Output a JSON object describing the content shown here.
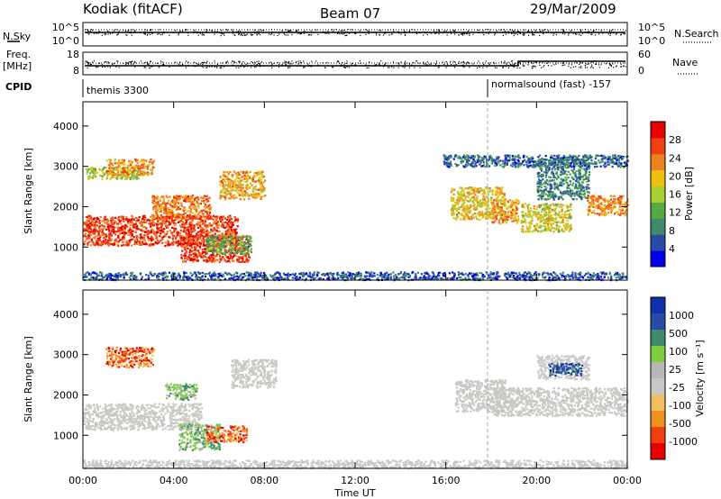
{
  "header": {
    "station": "Kodiak (fitACF)",
    "beam": "Beam 07",
    "date": "29/Mar/2009"
  },
  "noise_panel": {
    "left_label": "N.Sky",
    "right_label": "N.Search",
    "ticks_left": [
      "10^5",
      "10^0"
    ],
    "ticks_right": [
      "10^5",
      "10^0"
    ]
  },
  "freq_panel": {
    "left_label_1": "Freq.",
    "left_label_2": "[MHz]",
    "right_label": "Nave",
    "ticks_left": [
      "18",
      "8"
    ],
    "ticks_right": [
      "60",
      "0"
    ]
  },
  "cpid_panel": {
    "label": "CPID",
    "segments": [
      {
        "t_start": 0,
        "t_end": 18,
        "text": "themis 3300"
      },
      {
        "t_start": 18,
        "t_end": 24,
        "text": "normalsound (fast) -157"
      }
    ]
  },
  "colors": {
    "power": [
      "#0000ee",
      "#2a4aa8",
      "#3e8a6a",
      "#55aa44",
      "#a8d030",
      "#f0c010",
      "#f08020",
      "#f04010",
      "#e80000"
    ],
    "velocity": [
      "#e80000",
      "#f04010",
      "#f09020",
      "#f0c060",
      "#c8c8c8",
      "#b8b8b8",
      "#7fcf40",
      "#3e8a6a",
      "#2a4aa8",
      "#1030b0"
    ],
    "ground_scatter": "#c8c8c4"
  },
  "chart_data": [
    {
      "type": "heatmap",
      "name": "power",
      "title": "",
      "xlabel": "Time UT",
      "ylabel": "Slant Range [km]",
      "xlim": [
        0,
        24
      ],
      "ylim": [
        180,
        4600
      ],
      "x_ticks": [
        "00:00",
        "04:00",
        "08:00",
        "12:00",
        "16:00",
        "20:00",
        "00:00"
      ],
      "y_ticks": [
        "1000",
        "2000",
        "3000",
        "4000"
      ],
      "colorbar": {
        "label": "Power [dB]",
        "ticks": [
          "4",
          "8",
          "12",
          "16",
          "20",
          "24",
          "28"
        ],
        "range": [
          0,
          32
        ]
      },
      "regions": [
        {
          "t0": 0.1,
          "t1": 2.5,
          "r0": 2700,
          "r1": 3000,
          "value": 16
        },
        {
          "t0": 1.0,
          "t1": 3.1,
          "r0": 2800,
          "r1": 3200,
          "value": 22
        },
        {
          "t0": 0.0,
          "t1": 6.8,
          "r0": 1050,
          "r1": 1800,
          "value": 27
        },
        {
          "t0": 3.0,
          "t1": 5.6,
          "r0": 1700,
          "r1": 2300,
          "value": 24
        },
        {
          "t0": 4.3,
          "t1": 7.3,
          "r0": 650,
          "r1": 1300,
          "value": 27
        },
        {
          "t0": 5.4,
          "t1": 7.4,
          "r0": 850,
          "r1": 1300,
          "value": 12
        },
        {
          "t0": 6.0,
          "t1": 8.0,
          "r0": 2200,
          "r1": 2900,
          "value": 21
        },
        {
          "t0": 16.2,
          "t1": 18.6,
          "r0": 1700,
          "r1": 2500,
          "value": 19
        },
        {
          "t0": 18.0,
          "t1": 19.2,
          "r0": 1600,
          "r1": 2200,
          "value": 22
        },
        {
          "t0": 19.3,
          "t1": 21.5,
          "r0": 1400,
          "r1": 2100,
          "value": 18
        },
        {
          "t0": 20.0,
          "t1": 22.3,
          "r0": 2200,
          "r1": 3200,
          "value": 9
        },
        {
          "t0": 22.2,
          "t1": 24.0,
          "r0": 1800,
          "r1": 2300,
          "value": 23
        },
        {
          "t0": 15.8,
          "t1": 24.0,
          "r0": 3000,
          "r1": 3300,
          "value": 7
        },
        {
          "t0": 0.0,
          "t1": 24.0,
          "r0": 200,
          "r1": 400,
          "value": 6
        }
      ]
    },
    {
      "type": "heatmap",
      "name": "velocity",
      "title": "",
      "xlabel": "Time UT",
      "ylabel": "Slant Range [km]",
      "xlim": [
        0,
        24
      ],
      "ylim": [
        180,
        4600
      ],
      "x_ticks": [
        "00:00",
        "04:00",
        "08:00",
        "12:00",
        "16:00",
        "20:00",
        "00:00"
      ],
      "y_ticks": [
        "1000",
        "2000",
        "3000",
        "4000"
      ],
      "colorbar": {
        "label": "Velocity [m s⁻¹]",
        "ticks": [
          "1000",
          "500",
          "100",
          "25",
          "-25",
          "-100",
          "-500",
          "-1000"
        ]
      },
      "regions": [
        {
          "t0": 0.0,
          "t1": 5.2,
          "r0": 1150,
          "r1": 1800,
          "value": "ground"
        },
        {
          "t0": 1.0,
          "t1": 3.1,
          "r0": 2700,
          "r1": 3200,
          "value": "negative"
        },
        {
          "t0": 3.6,
          "t1": 5.0,
          "r0": 1900,
          "r1": 2300,
          "value": "positive"
        },
        {
          "t0": 4.2,
          "t1": 6.0,
          "r0": 650,
          "r1": 1300,
          "value": "positive"
        },
        {
          "t0": 5.4,
          "t1": 7.2,
          "r0": 850,
          "r1": 1250,
          "value": "negative"
        },
        {
          "t0": 6.5,
          "t1": 8.5,
          "r0": 2200,
          "r1": 2900,
          "value": "ground"
        },
        {
          "t0": 16.4,
          "t1": 18.6,
          "r0": 1600,
          "r1": 2400,
          "value": "ground"
        },
        {
          "t0": 18.0,
          "t1": 24.0,
          "r0": 1500,
          "r1": 2200,
          "value": "ground"
        },
        {
          "t0": 20.0,
          "t1": 22.3,
          "r0": 2400,
          "r1": 3000,
          "value": "ground"
        },
        {
          "t0": 20.5,
          "t1": 22.0,
          "r0": 2500,
          "r1": 2800,
          "value": "strong-positive"
        },
        {
          "t0": 0.0,
          "t1": 24.0,
          "r0": 200,
          "r1": 400,
          "value": "ground"
        }
      ]
    }
  ]
}
